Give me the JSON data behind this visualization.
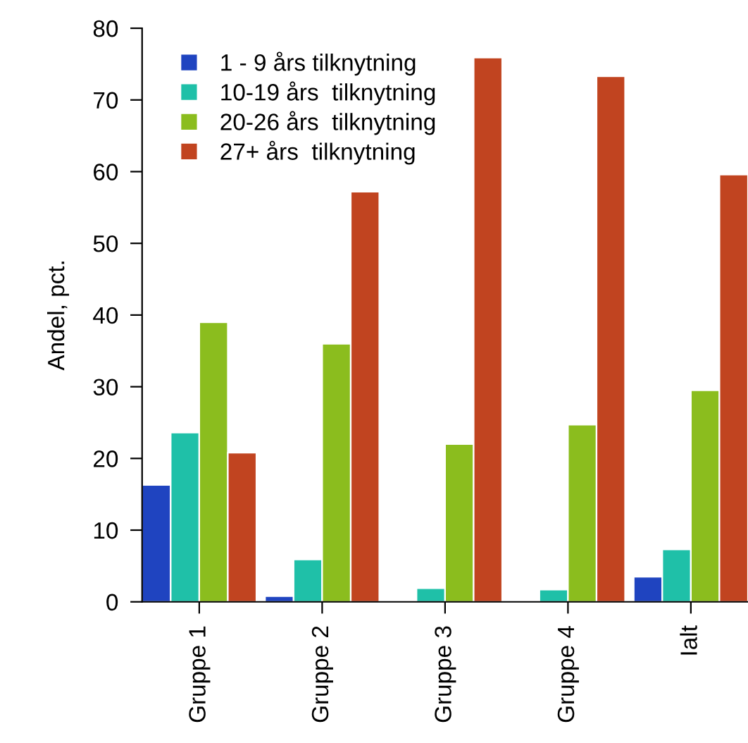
{
  "chart_data": {
    "type": "bar",
    "ylabel": "Andel, pct.",
    "categories": [
      "Gruppe 1",
      "Gruppe 2",
      "Gruppe 3",
      "Gruppe 4",
      "Ialt"
    ],
    "series": [
      {
        "name": "1 - 9 års tilknytning",
        "color": "#1f44c0",
        "values": [
          16.3,
          0.8,
          null,
          null,
          3.5
        ]
      },
      {
        "name": "10-19 års  tilknytning",
        "color": "#1fc0a8",
        "values": [
          23.6,
          5.9,
          1.9,
          1.7,
          7.3
        ]
      },
      {
        "name": "20-26 års  tilknytning",
        "color": "#8bbd1e",
        "values": [
          39,
          36,
          22,
          24.7,
          29.5
        ]
      },
      {
        "name": "27+ års  tilknytning",
        "color": "#c14420",
        "values": [
          20.8,
          57.2,
          75.9,
          73.3,
          59.6
        ]
      }
    ],
    "ylim": [
      0,
      80
    ],
    "yticks": [
      0,
      10,
      20,
      30,
      40,
      50,
      60,
      70,
      80
    ],
    "grid": false,
    "legend": "top left"
  }
}
